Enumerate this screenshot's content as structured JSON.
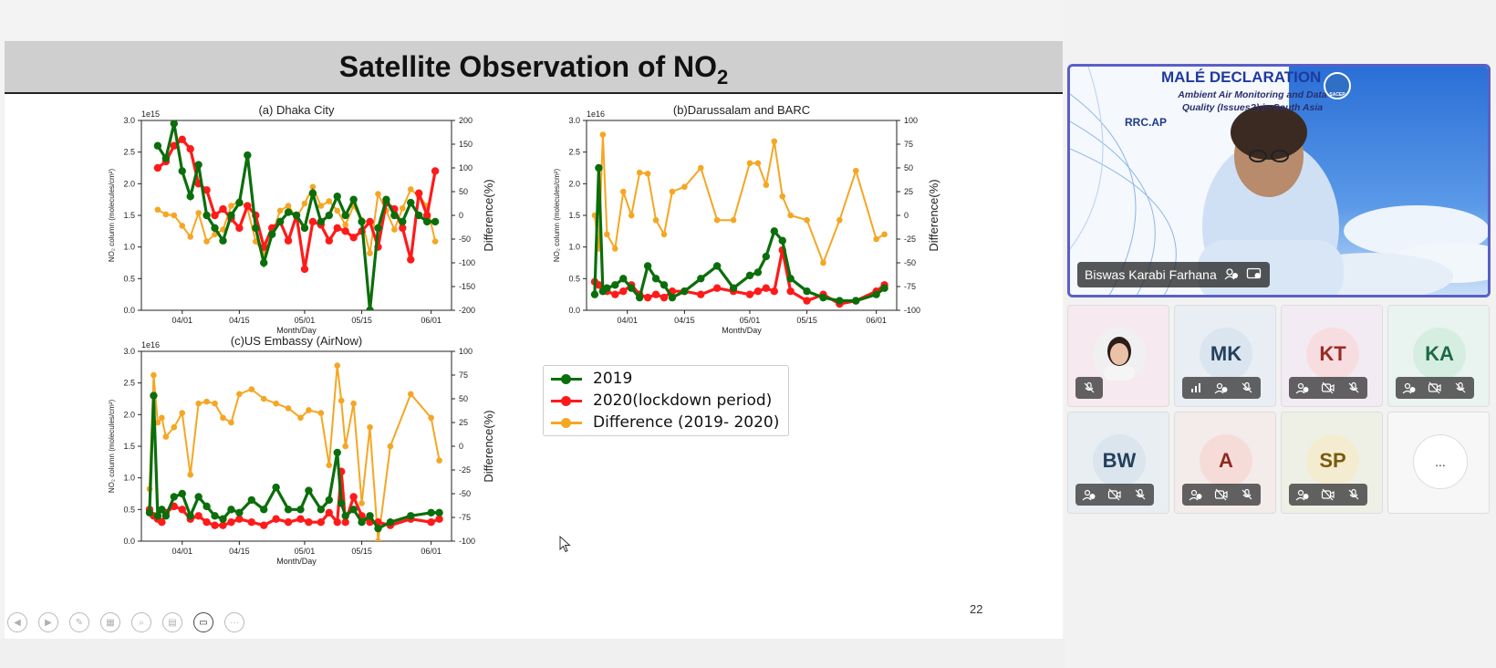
{
  "slide": {
    "title": "Satellite Observation of NO",
    "title_subscript": "2",
    "page_number": "22"
  },
  "legend": [
    {
      "label": "2019",
      "color": "#0b6e0b"
    },
    {
      "label": "2020(lockdown period)",
      "color": "#ff1a1a"
    },
    {
      "label": "Difference (2019- 2020)",
      "color": "#f5a623"
    }
  ],
  "colors": {
    "y2019": "#0b6e0b",
    "y2020": "#ff1a1a",
    "diff": "#f5a623",
    "accent": "#5b5fc7"
  },
  "chart_data": [
    {
      "type": "line",
      "title": "(a) Dhaka City",
      "xlabel": "Month/Day",
      "ylabel": "NO₂ column (molecules/cm²)",
      "y2label": "Difference(%)",
      "exponent": "1e15",
      "xticks": [
        "04/01",
        "04/15",
        "05/01",
        "05/15",
        "06/01"
      ],
      "yticks": [
        "0.0",
        "0.5",
        "1.0",
        "1.5",
        "2.0",
        "2.5",
        "3.0"
      ],
      "y2ticks": [
        "-200",
        "-150",
        "-100",
        "-50",
        "0",
        "50",
        "100",
        "150",
        "200"
      ],
      "ylim": [
        0,
        3
      ],
      "y2lim": [
        -200,
        200
      ],
      "xlim": [
        -10,
        66
      ],
      "series": [
        {
          "name": "2019",
          "x": [
            -6,
            -4,
            -2,
            0,
            2,
            4,
            6,
            8,
            10,
            12,
            14,
            16,
            18,
            20,
            22,
            24,
            26,
            28,
            30,
            32,
            34,
            36,
            38,
            40,
            42,
            44,
            46,
            48,
            50,
            52,
            54,
            56,
            58,
            60,
            62
          ],
          "y": [
            2.6,
            2.4,
            2.95,
            2.2,
            1.8,
            2.3,
            1.5,
            1.3,
            1.1,
            1.5,
            1.7,
            2.45,
            1.3,
            0.75,
            1.2,
            1.4,
            1.55,
            1.5,
            1.3,
            1.85,
            1.4,
            1.5,
            1.8,
            1.5,
            1.75,
            1.4,
            0.0,
            1.3,
            1.75,
            1.5,
            1.4,
            1.7,
            1.5,
            1.4,
            1.4
          ]
        },
        {
          "name": "2020(lockdown period)",
          "x": [
            -6,
            -4,
            -2,
            0,
            2,
            4,
            6,
            8,
            10,
            12,
            14,
            16,
            18,
            20,
            22,
            24,
            26,
            28,
            30,
            32,
            34,
            36,
            38,
            40,
            42,
            44,
            46,
            48,
            50,
            52,
            54,
            56,
            58,
            60,
            62
          ],
          "y": [
            2.25,
            2.35,
            2.6,
            2.7,
            2.55,
            2.0,
            1.9,
            1.5,
            1.6,
            1.45,
            1.3,
            1.65,
            1.5,
            1.0,
            1.3,
            1.4,
            1.1,
            1.5,
            0.65,
            1.4,
            1.35,
            1.1,
            1.3,
            1.25,
            1.15,
            1.25,
            1.4,
            1.0,
            1.7,
            1.6,
            1.3,
            0.8,
            1.85,
            1.5,
            2.2
          ]
        },
        {
          "name": "Difference (2019- 2020)",
          "x": [
            -6,
            -4,
            -2,
            0,
            2,
            4,
            6,
            8,
            10,
            12,
            14,
            16,
            18,
            20,
            22,
            24,
            26,
            28,
            30,
            32,
            34,
            36,
            38,
            40,
            42,
            44,
            46,
            48,
            50,
            52,
            54,
            56,
            58,
            60,
            62
          ],
          "y": [
            12,
            2,
            0,
            -22,
            -45,
            5,
            -55,
            -40,
            -30,
            20,
            30,
            15,
            -55,
            -80,
            -40,
            10,
            20,
            -5,
            25,
            60,
            20,
            30,
            10,
            -20,
            20,
            -10,
            -80,
            45,
            10,
            -30,
            15,
            55,
            40,
            20,
            -55
          ]
        }
      ]
    },
    {
      "type": "line",
      "title": "(b)Darussalam and BARC",
      "xlabel": "Month/Day",
      "ylabel": "NO₂ column (molecules/cm²)",
      "y2label": "Difference(%)",
      "exponent": "1e16",
      "xticks": [
        "04/01",
        "04/15",
        "05/01",
        "05/15",
        "06/01"
      ],
      "yticks": [
        "0.0",
        "0.5",
        "1.0",
        "1.5",
        "2.0",
        "2.5",
        "3.0"
      ],
      "y2ticks": [
        "-100",
        "-75",
        "-50",
        "-25",
        "0",
        "25",
        "50",
        "75",
        "100"
      ],
      "ylim": [
        0,
        3
      ],
      "y2lim": [
        -100,
        100
      ],
      "xlim": [
        -10,
        66
      ],
      "series": [
        {
          "name": "2019",
          "x": [
            -8,
            -7,
            -6,
            -5,
            -3,
            -1,
            1,
            3,
            5,
            7,
            9,
            11,
            14,
            18,
            22,
            26,
            30,
            32,
            34,
            36,
            38,
            40,
            44,
            48,
            52,
            56,
            61,
            63
          ],
          "y": [
            0.25,
            2.25,
            0.3,
            0.35,
            0.4,
            0.5,
            0.35,
            0.2,
            0.7,
            0.5,
            0.4,
            0.2,
            0.3,
            0.5,
            0.7,
            0.35,
            0.55,
            0.6,
            0.85,
            1.25,
            1.1,
            0.5,
            0.3,
            0.2,
            0.15,
            0.15,
            0.25,
            0.35
          ]
        },
        {
          "name": "2020(lockdown period)",
          "x": [
            -8,
            -7,
            -6,
            -5,
            -3,
            -1,
            1,
            3,
            5,
            7,
            9,
            11,
            14,
            18,
            22,
            26,
            30,
            32,
            34,
            36,
            38,
            40,
            44,
            48,
            52,
            56,
            61,
            63
          ],
          "y": [
            0.45,
            0.4,
            0.3,
            0.3,
            0.25,
            0.3,
            0.4,
            0.25,
            0.2,
            0.25,
            0.2,
            0.3,
            0.3,
            0.25,
            0.35,
            0.3,
            0.25,
            0.3,
            0.35,
            0.3,
            0.95,
            0.3,
            0.15,
            0.25,
            0.1,
            0.15,
            0.3,
            0.4
          ]
        },
        {
          "name": "Difference (2019- 2020)",
          "x": [
            -8,
            -7,
            -6,
            -5,
            -3,
            -1,
            1,
            3,
            5,
            7,
            9,
            11,
            14,
            18,
            22,
            26,
            30,
            32,
            34,
            36,
            38,
            40,
            44,
            48,
            52,
            56,
            61,
            63
          ],
          "y": [
            0,
            -35,
            85,
            -20,
            -35,
            25,
            0,
            45,
            44,
            -5,
            -20,
            25,
            30,
            50,
            -5,
            -5,
            55,
            55,
            32,
            78,
            20,
            0,
            -5,
            -50,
            -5,
            47,
            -25,
            -20
          ]
        }
      ]
    },
    {
      "type": "line",
      "title": "(c)US Embassy (AirNow)",
      "xlabel": "Month/Day",
      "ylabel": "NO₂ column (molecules/cm²)",
      "y2label": "Difference(%)",
      "exponent": "1e16",
      "xticks": [
        "04/01",
        "04/15",
        "05/01",
        "05/15",
        "06/01"
      ],
      "yticks": [
        "0.0",
        "0.5",
        "1.0",
        "1.5",
        "2.0",
        "2.5",
        "3.0"
      ],
      "y2ticks": [
        "-100",
        "-75",
        "-50",
        "-25",
        "0",
        "25",
        "50",
        "75",
        "100"
      ],
      "ylim": [
        0,
        3
      ],
      "y2lim": [
        -100,
        100
      ],
      "xlim": [
        -10,
        66
      ],
      "series": [
        {
          "name": "2019",
          "x": [
            -8,
            -7,
            -6,
            -5,
            -4,
            -2,
            0,
            2,
            4,
            6,
            8,
            10,
            12,
            14,
            17,
            20,
            23,
            26,
            29,
            31,
            34,
            36,
            38,
            39,
            40,
            42,
            44,
            46,
            48,
            51,
            56,
            61,
            63
          ],
          "y": [
            0.45,
            2.3,
            0.4,
            0.5,
            0.4,
            0.7,
            0.75,
            0.4,
            0.7,
            0.55,
            0.4,
            0.35,
            0.5,
            0.45,
            0.65,
            0.5,
            0.85,
            0.5,
            0.5,
            0.8,
            0.5,
            0.65,
            1.4,
            0.6,
            0.4,
            0.5,
            0.3,
            0.4,
            0.2,
            0.3,
            0.4,
            0.45,
            0.45
          ]
        },
        {
          "name": "2020(lockdown period)",
          "x": [
            -8,
            -7,
            -6,
            -5,
            -4,
            -2,
            0,
            2,
            4,
            6,
            8,
            10,
            12,
            14,
            17,
            20,
            23,
            26,
            29,
            31,
            34,
            36,
            38,
            39,
            40,
            42,
            44,
            46,
            48,
            51,
            56,
            61,
            63
          ],
          "y": [
            0.5,
            0.4,
            0.35,
            0.3,
            0.45,
            0.55,
            0.5,
            0.35,
            0.4,
            0.3,
            0.25,
            0.25,
            0.3,
            0.35,
            0.3,
            0.25,
            0.35,
            0.3,
            0.35,
            0.3,
            0.3,
            0.45,
            0.3,
            1.1,
            0.3,
            0.7,
            0.4,
            0.3,
            0.3,
            0.25,
            0.35,
            0.3,
            0.35
          ]
        },
        {
          "name": "Difference (2019- 2020)",
          "x": [
            -8,
            -7,
            -6,
            -5,
            -4,
            -2,
            0,
            2,
            4,
            6,
            8,
            10,
            12,
            14,
            17,
            20,
            23,
            26,
            29,
            31,
            34,
            36,
            38,
            39,
            40,
            42,
            44,
            46,
            48,
            51,
            56,
            61,
            63
          ],
          "y": [
            -45,
            75,
            25,
            30,
            10,
            20,
            35,
            -30,
            45,
            47,
            45,
            30,
            25,
            55,
            60,
            50,
            45,
            40,
            30,
            38,
            35,
            -20,
            85,
            48,
            0,
            45,
            -60,
            20,
            -100,
            0,
            55,
            30,
            -15
          ]
        }
      ]
    }
  ],
  "toolbar": [
    {
      "icon": "prev-icon",
      "glyph": "◀"
    },
    {
      "icon": "next-icon",
      "glyph": "▶"
    },
    {
      "icon": "pen-icon",
      "glyph": "✎"
    },
    {
      "icon": "slides-icon",
      "glyph": "▦"
    },
    {
      "icon": "zoom-icon",
      "glyph": "⌕"
    },
    {
      "icon": "subtitles-icon",
      "glyph": "▤"
    },
    {
      "icon": "camera-icon",
      "glyph": "▭"
    },
    {
      "icon": "more-icon",
      "glyph": "···"
    }
  ],
  "presenter": {
    "name": "Biswas Karabi Farhana",
    "slide_title": "MALÉ DECLARATION",
    "slide_subtitle": "Ambient Air Monitoring and Data Quality (Issues?) in South Asia",
    "logo_text": "RRC.AP",
    "badge_text": "SACEP"
  },
  "participants": [
    {
      "initials": "",
      "photo": true,
      "bg": "#f6e9ef",
      "avatar_bg": "#f2f2f2",
      "text_color": "#333",
      "icons": [
        "mic-off-icon"
      ]
    },
    {
      "initials": "MK",
      "bg": "#e9eef4",
      "avatar_bg": "#dbe5ef",
      "text_color": "#24405d",
      "icons": [
        "signal-icon",
        "info-icon",
        "mic-off-icon"
      ]
    },
    {
      "initials": "KT",
      "bg": "#f3ebf3",
      "avatar_bg": "#f7dde0",
      "text_color": "#9a2c24",
      "icons": [
        "info-icon",
        "camera-off-icon",
        "mic-off-icon"
      ]
    },
    {
      "initials": "KA",
      "bg": "#e9f3ef",
      "avatar_bg": "#d6eee2",
      "text_color": "#1d6a46",
      "icons": [
        "info-icon",
        "camera-off-icon",
        "mic-off-icon"
      ]
    },
    {
      "initials": "BW",
      "bg": "#e9eef3",
      "avatar_bg": "#dbe5ee",
      "text_color": "#24405d",
      "icons": [
        "info-icon",
        "camera-off-icon",
        "mic-off-icon"
      ]
    },
    {
      "initials": "A",
      "bg": "#f4ebeb",
      "avatar_bg": "#f6dcd8",
      "text_color": "#8f2a1f",
      "icons": [
        "info-icon",
        "camera-off-icon",
        "mic-off-icon"
      ]
    },
    {
      "initials": "SP",
      "bg": "#eef0e6",
      "avatar_bg": "#f3ecd0",
      "text_color": "#7a5a10",
      "icons": [
        "info-icon",
        "camera-off-icon",
        "mic-off-icon"
      ]
    },
    {
      "more": true,
      "label": "...",
      "bg": "#f7f7f7"
    }
  ]
}
